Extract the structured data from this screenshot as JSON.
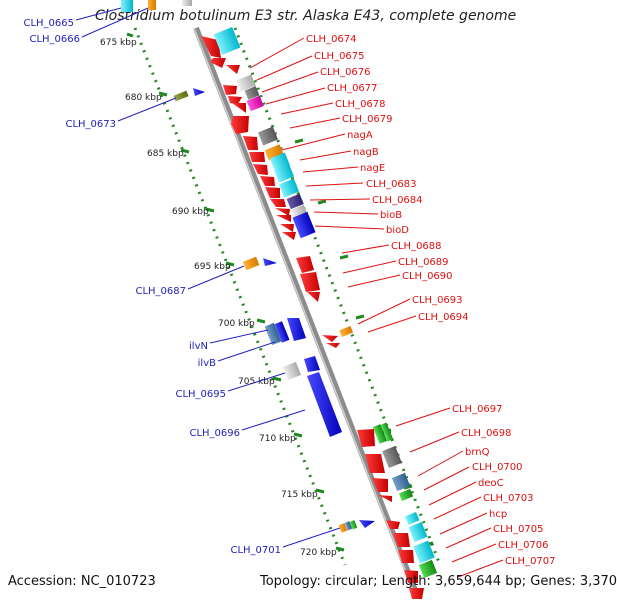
{
  "title": "Clostridium botulinum E3 str. Alaska E43, complete genome",
  "footer": {
    "accession": "Accession: NC_010723",
    "summary": "Topology: circular; Length: 3,659,644 bp; Genes: 3,370"
  },
  "colors": {
    "backbone": "#8c8c8c",
    "forward_label": "#2222bb",
    "reverse_label": "#dd1111",
    "tick_label": "#222222",
    "dots": "#228822"
  },
  "ticks": [
    {
      "label": "675 kbp"
    },
    {
      "label": "680 kbp"
    },
    {
      "label": "685 kbp"
    },
    {
      "label": "690 kbp"
    },
    {
      "label": "695 kbp"
    },
    {
      "label": "700 kbp"
    },
    {
      "label": "705 kbp"
    },
    {
      "label": "710 kbp"
    },
    {
      "label": "715 kbp"
    },
    {
      "label": "720 kbp"
    }
  ],
  "forward_genes": [
    {
      "label": "CLH_0665"
    },
    {
      "label": "CLH_0666"
    },
    {
      "label": "CLH_0673"
    },
    {
      "label": "CLH_0687"
    },
    {
      "label": "ilvN"
    },
    {
      "label": "ilvB"
    },
    {
      "label": "CLH_0695"
    },
    {
      "label": "CLH_0696"
    },
    {
      "label": "CLH_0701"
    }
  ],
  "reverse_genes": [
    {
      "label": "CLH_0674"
    },
    {
      "label": "CLH_0675"
    },
    {
      "label": "CLH_0676"
    },
    {
      "label": "CLH_0677"
    },
    {
      "label": "CLH_0678"
    },
    {
      "label": "CLH_0679"
    },
    {
      "label": "nagA"
    },
    {
      "label": "nagB"
    },
    {
      "label": "nagE"
    },
    {
      "label": "CLH_0683"
    },
    {
      "label": "CLH_0684"
    },
    {
      "label": "bioB"
    },
    {
      "label": "bioD"
    },
    {
      "label": "CLH_0688"
    },
    {
      "label": "CLH_0689"
    },
    {
      "label": "CLH_0690"
    },
    {
      "label": "CLH_0693"
    },
    {
      "label": "CLH_0694"
    },
    {
      "label": "CLH_0697"
    },
    {
      "label": "CLH_0698"
    },
    {
      "label": "brnQ"
    },
    {
      "label": "CLH_0700"
    },
    {
      "label": "deoC"
    },
    {
      "label": "CLH_0703"
    },
    {
      "label": "hcp"
    },
    {
      "label": "CLH_0705"
    },
    {
      "label": "CLH_0706"
    },
    {
      "label": "CLH_0707"
    }
  ]
}
